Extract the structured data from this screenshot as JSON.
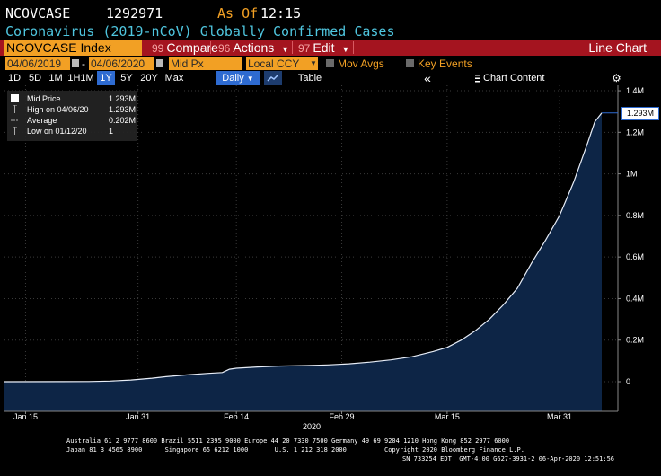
{
  "header": {
    "ticker": "NCOVCASE",
    "value": "1292971",
    "asof_label": "As Of",
    "asof_time": "12:15",
    "subtitle": "Coronavirus (2019-nCoV) Globally Confirmed Cases"
  },
  "function_bar": {
    "security": "NCOVCASE Index",
    "compare_num": "99",
    "compare": "Compare",
    "actions_num": "96",
    "actions": "Actions",
    "edit_num": "97",
    "edit": "Edit",
    "chart_type": "Line Chart"
  },
  "options": {
    "start_date": "04/06/2019",
    "dash": "-",
    "end_date": "04/06/2020",
    "field": "Mid Px",
    "currency": "Local CCY",
    "mov_avgs": "Mov Avgs",
    "key_events": "Key Events"
  },
  "periods": [
    "1D",
    "5D",
    "1M",
    "1H1M",
    "1Y",
    "5Y",
    "20Y",
    "Max"
  ],
  "selected_period": "1Y",
  "frequency": "Daily",
  "table_label": "Table",
  "collapse_label": "«",
  "chart_content": "Chart Content",
  "legend": [
    {
      "name": "Mid Price",
      "value": "1.293M"
    },
    {
      "name": "High on 04/06/20",
      "value": "1.293M"
    },
    {
      "name": "Average",
      "value": "0.202M"
    },
    {
      "name": "Low on 01/12/20",
      "value": "1"
    }
  ],
  "last_value_label": "1.293M",
  "colors": {
    "orange": "#f2a024",
    "red_bar": "#a4141f",
    "cyan": "#4fc6df",
    "area_fill": "#0d2546",
    "highlight": "#2e6bd1"
  },
  "chart_data": {
    "type": "area",
    "xlabel": "2020",
    "ylabel": "",
    "y_ticks": [
      "1.4M",
      "1.2M",
      "1M",
      "0.8M",
      "0.6M",
      "0.4M",
      "0.2M",
      "0"
    ],
    "x_ticks": [
      "Jan 15",
      "Jan 31",
      "Feb 14",
      "Feb 29",
      "Mar 15",
      "Mar 31"
    ],
    "ylim": [
      -120000,
      1420000
    ],
    "grid": true,
    "series": [
      {
        "name": "Mid Price",
        "points": [
          [
            "2020-01-12",
            1
          ],
          [
            "2020-01-20",
            300
          ],
          [
            "2020-01-24",
            1000
          ],
          [
            "2020-01-27",
            3000
          ],
          [
            "2020-01-30",
            8000
          ],
          [
            "2020-02-02",
            17000
          ],
          [
            "2020-02-04",
            24000
          ],
          [
            "2020-02-07",
            33000
          ],
          [
            "2020-02-10",
            40000
          ],
          [
            "2020-02-12",
            44000
          ],
          [
            "2020-02-13",
            60000
          ],
          [
            "2020-02-14",
            65000
          ],
          [
            "2020-02-17",
            71000
          ],
          [
            "2020-02-20",
            75000
          ],
          [
            "2020-02-24",
            78000
          ],
          [
            "2020-02-27",
            81000
          ],
          [
            "2020-03-01",
            86000
          ],
          [
            "2020-03-04",
            94000
          ],
          [
            "2020-03-07",
            105000
          ],
          [
            "2020-03-10",
            120000
          ],
          [
            "2020-03-13",
            145000
          ],
          [
            "2020-03-15",
            165000
          ],
          [
            "2020-03-17",
            200000
          ],
          [
            "2020-03-19",
            245000
          ],
          [
            "2020-03-21",
            300000
          ],
          [
            "2020-03-23",
            370000
          ],
          [
            "2020-03-25",
            450000
          ],
          [
            "2020-03-27",
            570000
          ],
          [
            "2020-03-29",
            680000
          ],
          [
            "2020-03-31",
            800000
          ],
          [
            "2020-04-02",
            960000
          ],
          [
            "2020-04-04",
            1150000
          ],
          [
            "2020-04-05",
            1250000
          ],
          [
            "2020-04-06",
            1292971
          ]
        ]
      }
    ]
  },
  "footer": {
    "line1": "Australia 61 2 9777 8600 Brazil 5511 2395 9000 Europe 44 20 7330 7500 Germany 49 69 9204 1210 Hong Kong 852 2977 6000",
    "line2": "Japan 81 3 4565 8900      Singapore 65 6212 1000       U.S. 1 212 318 2000          Copyright 2020 Bloomberg Finance L.P.",
    "line3": "SN 733254 EDT  GMT-4:00 G627-3931-2 06-Apr-2020 12:51:56"
  }
}
